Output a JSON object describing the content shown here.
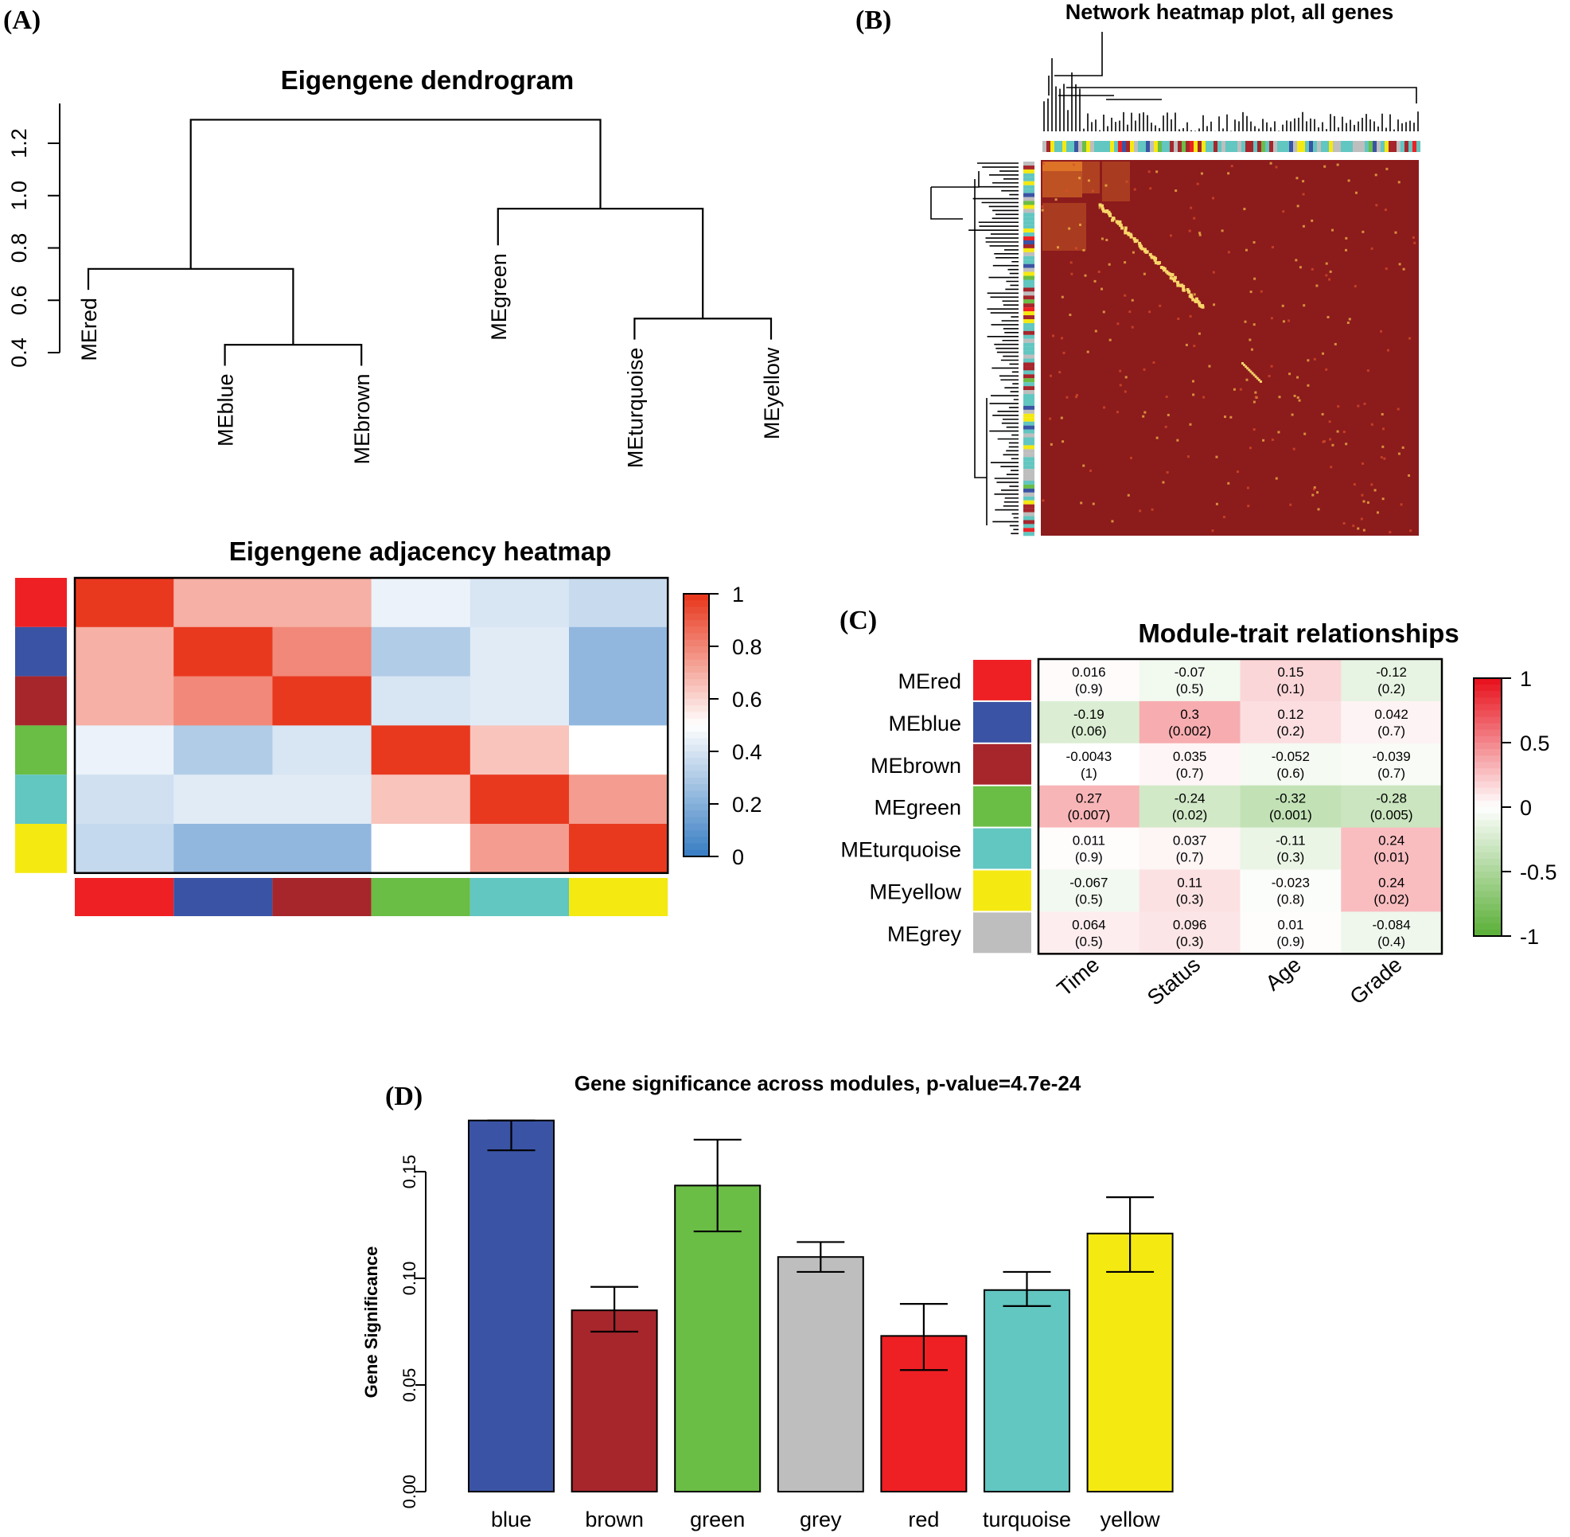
{
  "module_colors": {
    "red": "#ee2024",
    "blue": "#3a53a4",
    "brown": "#a6262c",
    "green": "#6abd45",
    "turquoise": "#62c6c1",
    "yellow": "#f5e912",
    "grey": "#bebebe"
  },
  "chart_data": [
    {
      "panel": "(A)",
      "type": "dendrogram",
      "title": "Eigengene dendrogram",
      "yticks": [
        "0.4",
        "0.6",
        "0.8",
        "1.0",
        "1.2"
      ],
      "ylim": [
        0.4,
        1.2
      ],
      "leaves": [
        {
          "label": "MEred",
          "end_height": 0.64
        },
        {
          "label": "MEblue",
          "end_height": 0.35
        },
        {
          "label": "MEbrown",
          "end_height": 0.35
        },
        {
          "label": "MEgreen",
          "end_height": 0.81
        },
        {
          "label": "MEturquoise",
          "end_height": 0.45
        },
        {
          "label": "MEyellow",
          "end_height": 0.45
        }
      ],
      "merges": [
        {
          "a": "MEblue",
          "b": "MEbrown",
          "height": 0.43
        },
        {
          "a": "MEturquoise",
          "b": "MEyellow",
          "height": 0.53
        },
        {
          "a": "MEred",
          "b": "m1",
          "height": 0.72
        },
        {
          "a": "MEgreen",
          "b": "m2",
          "height": 0.95
        },
        {
          "a": "m3",
          "b": "m4",
          "height": 1.29
        }
      ]
    },
    {
      "panel": "(A)",
      "type": "heatmap",
      "title": "Eigengene adjacency heatmap",
      "modules": [
        "red",
        "blue",
        "brown",
        "green",
        "turquoise",
        "yellow"
      ],
      "values": [
        [
          1.0,
          0.7,
          0.7,
          0.45,
          0.4,
          0.36
        ],
        [
          0.7,
          1.0,
          0.8,
          0.3,
          0.42,
          0.22
        ],
        [
          0.7,
          0.8,
          1.0,
          0.4,
          0.42,
          0.22
        ],
        [
          0.45,
          0.3,
          0.4,
          1.0,
          0.65,
          0.5
        ],
        [
          0.38,
          0.42,
          0.42,
          0.65,
          1.0,
          0.75
        ],
        [
          0.35,
          0.22,
          0.22,
          0.5,
          0.75,
          1.0
        ]
      ],
      "colorbar_ticks": [
        "0",
        "0.2",
        "0.4",
        "0.6",
        "0.8",
        "1"
      ],
      "scale": {
        "low": "#3b7fc4",
        "mid": "#ffffff",
        "high": "#e8391f"
      }
    },
    {
      "panel": "(B)",
      "type": "heatmap",
      "title": "Network heatmap plot, all genes"
    },
    {
      "panel": "(C)",
      "type": "heatmap",
      "title": "Module-trait relationships",
      "rows": [
        "MEred",
        "MEblue",
        "MEbrown",
        "MEgreen",
        "MEturquoise",
        "MEyellow",
        "MEgrey"
      ],
      "row_modules": [
        "red",
        "blue",
        "brown",
        "green",
        "turquoise",
        "yellow",
        "grey"
      ],
      "columns": [
        "Time",
        "Status",
        "Age",
        "Grade"
      ],
      "values": [
        [
          0.016,
          -0.07,
          0.15,
          -0.12
        ],
        [
          -0.19,
          0.3,
          0.12,
          0.042
        ],
        [
          -0.0043,
          0.035,
          -0.052,
          -0.039
        ],
        [
          0.27,
          -0.24,
          -0.32,
          -0.28
        ],
        [
          0.011,
          0.037,
          -0.11,
          0.24
        ],
        [
          -0.067,
          0.11,
          -0.023,
          0.24
        ],
        [
          0.064,
          0.096,
          0.01,
          -0.084
        ]
      ],
      "cell_text": [
        [
          "0.016",
          "-0.07",
          "0.15",
          "-0.12"
        ],
        [
          "-0.19",
          "0.3",
          "0.12",
          "0.042"
        ],
        [
          "-0.0043",
          "0.035",
          "-0.052",
          "-0.039"
        ],
        [
          "0.27",
          "-0.24",
          "-0.32",
          "-0.28"
        ],
        [
          "0.011",
          "0.037",
          "-0.11",
          "0.24"
        ],
        [
          "-0.067",
          "0.11",
          "-0.023",
          "0.24"
        ],
        [
          "0.064",
          "0.096",
          "0.01",
          "-0.084"
        ]
      ],
      "pvalues": [
        [
          "(0.9)",
          "(0.5)",
          "(0.1)",
          "(0.2)"
        ],
        [
          "(0.06)",
          "(0.002)",
          "(0.2)",
          "(0.7)"
        ],
        [
          "(1)",
          "(0.7)",
          "(0.6)",
          "(0.7)"
        ],
        [
          "(0.007)",
          "(0.02)",
          "(0.001)",
          "(0.005)"
        ],
        [
          "(0.9)",
          "(0.7)",
          "(0.3)",
          "(0.01)"
        ],
        [
          "(0.5)",
          "(0.3)",
          "(0.8)",
          "(0.02)"
        ],
        [
          "(0.5)",
          "(0.3)",
          "(0.9)",
          "(0.4)"
        ]
      ],
      "colorbar_ticks": [
        "1",
        "0.5",
        "0",
        "-0.5",
        "-1"
      ],
      "scale": {
        "low": "#5db13b",
        "mid": "#ffffff",
        "high": "#e8141f"
      }
    },
    {
      "panel": "(D)",
      "type": "bar",
      "title": "Gene significance across modules, p-value=4.7e-24",
      "ylabel": "Gene Significance",
      "categories": [
        "blue",
        "brown",
        "green",
        "grey",
        "red",
        "turquoise",
        "yellow"
      ],
      "values": [
        0.174,
        0.085,
        0.1435,
        0.11,
        0.073,
        0.0945,
        0.121
      ],
      "error_low": [
        0.16,
        0.075,
        0.122,
        0.103,
        0.057,
        0.087,
        0.103
      ],
      "error_high": [
        0.174,
        0.096,
        0.165,
        0.117,
        0.088,
        0.103,
        0.138
      ],
      "yticks": [
        "0.00",
        "0.05",
        "0.10",
        "0.15"
      ],
      "ylim": [
        0,
        0.174
      ]
    }
  ]
}
